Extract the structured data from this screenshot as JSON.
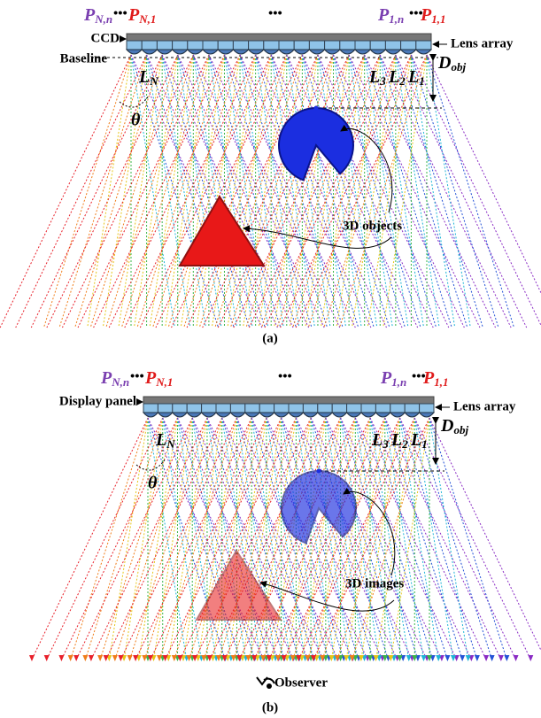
{
  "panels": [
    {
      "pixels": [
        {
          "main": "P",
          "sub": "N,n"
        },
        {
          "main": "P",
          "sub": "N,1"
        },
        {
          "main": "P",
          "sub": "1,n"
        },
        {
          "main": "P",
          "sub": "1,1"
        }
      ],
      "ellipses": [
        "•••",
        "•••",
        "•••"
      ],
      "sensor_label": "CCD",
      "lens_label": "Lens array",
      "baseline_label": "Baseline",
      "lens_N": {
        "main": "L",
        "sub": "N"
      },
      "angle": "θ",
      "lenses": [
        {
          "main": "L",
          "sub": "3"
        },
        {
          "main": "L",
          "sub": "2"
        },
        {
          "main": "L",
          "sub": "1"
        }
      ],
      "distance": {
        "main": "D",
        "sub": "obj"
      },
      "objects_label": "3D objects",
      "caption": "(a)"
    },
    {
      "pixels": [
        {
          "main": "P",
          "sub": "N,n"
        },
        {
          "main": "P",
          "sub": "N,1"
        },
        {
          "main": "P",
          "sub": "1,n"
        },
        {
          "main": "P",
          "sub": "1,1"
        }
      ],
      "ellipses": [
        "•••",
        "•••",
        "•••"
      ],
      "sensor_label": "Display panel",
      "lens_label": "Lens array",
      "lens_N": {
        "main": "L",
        "sub": "N"
      },
      "angle": "θ",
      "lenses": [
        {
          "main": "L",
          "sub": "3"
        },
        {
          "main": "L",
          "sub": "2"
        },
        {
          "main": "L",
          "sub": "1"
        }
      ],
      "distance": {
        "main": "D",
        "sub": "obj"
      },
      "objects_label": "3D images",
      "observer_label": "Observer",
      "caption": "(b)"
    }
  ]
}
